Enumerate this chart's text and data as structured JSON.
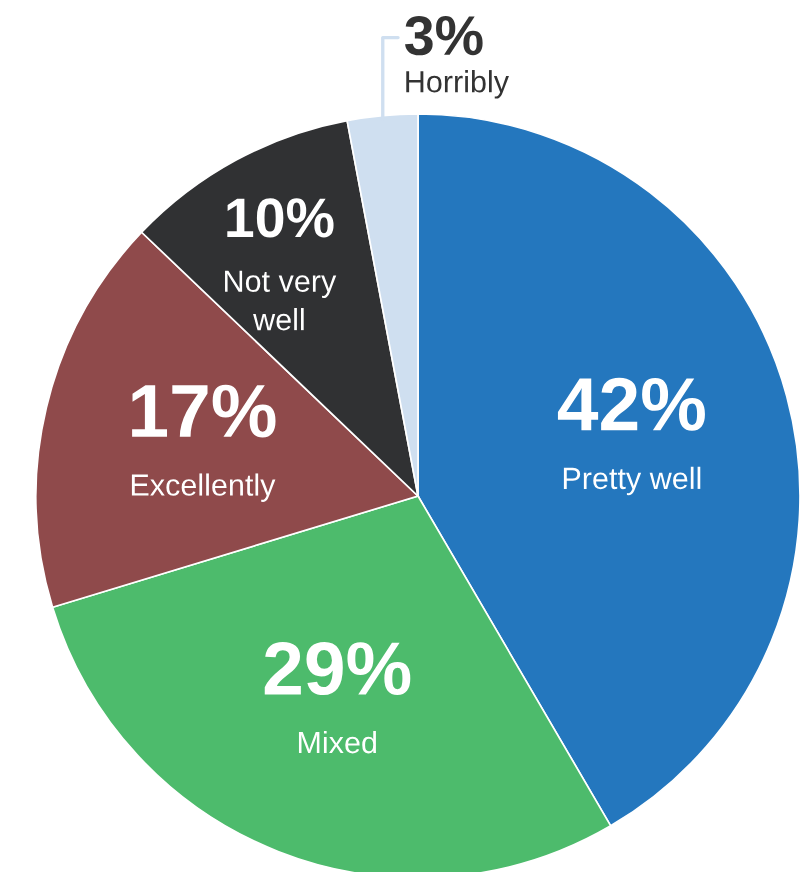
{
  "chart_data": {
    "type": "pie",
    "categories": [
      "Pretty well",
      "Mixed",
      "Excellently",
      "Not very well",
      "Horribly"
    ],
    "values": [
      42,
      29,
      17,
      10,
      3
    ],
    "value_labels": [
      "42%",
      "29%",
      "17%",
      "10%",
      "3%"
    ],
    "colors": [
      "#2477be",
      "#4dbb6c",
      "#8f4a4b",
      "#303133",
      "#cfdff0"
    ]
  }
}
